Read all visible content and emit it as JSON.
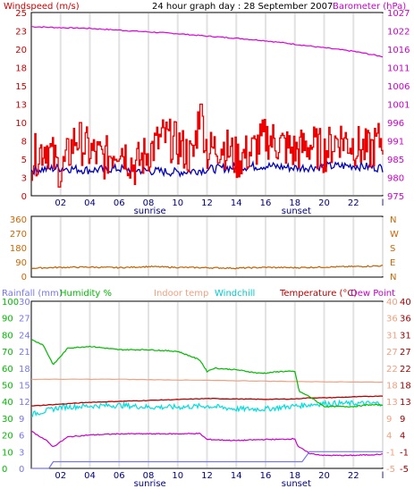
{
  "colors": {
    "windspeed": "#ee0000",
    "wind_avg": "#0000bb",
    "barometer": "#dd00dd",
    "winddir": "#c06000",
    "rainfall": "#7777ee",
    "humidity": "#00bb00",
    "indoor_temp": "#f0a080",
    "windchill": "#00dddd",
    "temperature": "#bb0000",
    "dewpoint": "#cc00cc",
    "axis_label_red": "#cc0000",
    "axis_label_purple": "#cc00cc",
    "axis_label_orange": "#cc6600"
  },
  "chart_data": [
    {
      "type": "line",
      "title": "24 hour graph day : 28 September 2007",
      "left_label": "Windspeed (m/s)",
      "right_label": "Barometer (hPa)",
      "x_ticks": [
        "02",
        "04",
        "06",
        "08",
        "10",
        "12",
        "14",
        "16",
        "18",
        "20",
        "22",
        "l"
      ],
      "x_markers": [
        "sunrise",
        "sunset"
      ],
      "y_left_ticks": [
        "0",
        "3",
        "5",
        "8",
        "10",
        "13",
        "15",
        "18",
        "20",
        "23",
        "25"
      ],
      "y_right_ticks": [
        "975",
        "980",
        "985",
        "991",
        "996",
        "1001",
        "1006",
        "1011",
        "1016",
        "1022",
        "1027"
      ],
      "ylim_left": [
        0,
        25
      ],
      "ylim_right": [
        975,
        1027
      ],
      "grid": true,
      "series": [
        {
          "name": "Windspeed (m/s)",
          "axis": "left",
          "x": [
            0,
            1,
            2,
            3,
            4,
            5,
            6,
            7,
            8,
            9,
            10,
            11,
            11.5,
            12,
            13,
            14,
            15,
            16,
            17,
            18,
            19,
            20,
            21,
            22,
            23,
            24
          ],
          "values": [
            5,
            7,
            3,
            8,
            6,
            5,
            7,
            4,
            6,
            8,
            7,
            5,
            12,
            6,
            7,
            5,
            6,
            8,
            7,
            6,
            7,
            6,
            8,
            7,
            6,
            8
          ]
        },
        {
          "name": "Wind average",
          "axis": "left",
          "x": [
            0,
            2,
            4,
            6,
            8,
            10,
            12,
            14,
            16,
            18,
            20,
            22,
            24
          ],
          "values": [
            3.5,
            3.8,
            3.5,
            3.7,
            3.4,
            3.2,
            3.6,
            3.9,
            4.1,
            3.8,
            4.0,
            4.1,
            3.8
          ]
        },
        {
          "name": "Barometer (hPa)",
          "axis": "right",
          "x": [
            0,
            2,
            4,
            6,
            8,
            10,
            12,
            14,
            16,
            18,
            20,
            22,
            24
          ],
          "values": [
            1023,
            1022.7,
            1022.5,
            1022,
            1021.5,
            1021,
            1020.3,
            1019.7,
            1019,
            1018,
            1017,
            1016,
            1014.5
          ]
        }
      ]
    },
    {
      "type": "line",
      "y_left_ticks": [
        "360",
        "270",
        "180",
        "90",
        "0"
      ],
      "y_right_ticks": [
        "N",
        "W",
        "S",
        "E",
        "N"
      ],
      "ylim": [
        0,
        360
      ],
      "grid": true,
      "series": [
        {
          "name": "Wind direction",
          "x": [
            0,
            2,
            4,
            6,
            8,
            10,
            12,
            14,
            16,
            18,
            20,
            22,
            24
          ],
          "values": [
            45,
            50,
            52,
            48,
            55,
            50,
            48,
            45,
            50,
            48,
            52,
            55,
            60
          ]
        }
      ]
    },
    {
      "type": "line",
      "x_ticks": [
        "02",
        "04",
        "06",
        "08",
        "10",
        "12",
        "14",
        "16",
        "18",
        "20",
        "22",
        "l"
      ],
      "x_markers": [
        "sunrise",
        "sunset"
      ],
      "legend": [
        "Rainfall (mm)",
        "Humidity %",
        "Indoor temp",
        "Windchill",
        "Temperature (°C)",
        "Dew Point"
      ],
      "y_rain_ticks": [
        "30",
        "27",
        "24",
        "21",
        "18",
        "15",
        "12",
        "9",
        "6",
        "3",
        "0"
      ],
      "y_hum_ticks": [
        "100",
        "90",
        "80",
        "70",
        "60",
        "50",
        "40",
        "30",
        "20",
        "10",
        "0"
      ],
      "y_temp_ticks": [
        "40",
        "36",
        "31",
        "27",
        "22",
        "18",
        "13",
        "9",
        "4",
        "-1",
        "-5"
      ],
      "y_dew_ticks": [
        "40",
        "36",
        "31",
        "27",
        "22",
        "18",
        "13",
        "9",
        "4",
        "-1",
        "-5"
      ],
      "ylim_humidity": [
        0,
        100
      ],
      "ylim_temp": [
        -5,
        40
      ],
      "ylim_rain": [
        0,
        30
      ],
      "grid": true,
      "series": [
        {
          "name": "Humidity %",
          "x": [
            0,
            0.8,
            1.5,
            2.5,
            4,
            6,
            8,
            10,
            11.5,
            12,
            12.5,
            14,
            15.5,
            16,
            17,
            18,
            18.3,
            19,
            20,
            21,
            22,
            23,
            24
          ],
          "values": [
            77,
            74,
            62,
            72,
            73,
            71,
            71,
            70,
            65,
            58,
            60,
            59,
            57,
            57,
            58,
            58,
            46,
            43,
            37,
            37,
            37,
            38,
            38
          ]
        },
        {
          "name": "Indoor temp",
          "x": [
            0,
            6,
            12,
            18,
            24
          ],
          "values": [
            19,
            19,
            18.7,
            18.4,
            18.2
          ]
        },
        {
          "name": "Windchill",
          "x": [
            0,
            2,
            4,
            6,
            8,
            10,
            12,
            14,
            16,
            18,
            20,
            22,
            24
          ],
          "values": [
            9.5,
            11.5,
            11.8,
            12,
            11.5,
            11.5,
            11.8,
            11,
            11,
            11.8,
            12.5,
            12.5,
            12.5
          ]
        },
        {
          "name": "Temperature (°C)",
          "x": [
            0,
            4,
            8,
            12,
            16,
            18,
            19,
            20,
            24
          ],
          "values": [
            11.8,
            12.8,
            13.3,
            13.8,
            13.6,
            13.7,
            14,
            14,
            14.5
          ]
        },
        {
          "name": "Dew Point",
          "x": [
            0,
            1,
            1.5,
            2.5,
            4,
            6,
            8,
            10,
            11.5,
            12,
            14,
            16,
            17,
            18,
            18.2,
            19,
            20,
            22,
            24
          ],
          "values": [
            5,
            2.6,
            0.8,
            3.5,
            4,
            4.3,
            4.3,
            4.3,
            4.4,
            2.8,
            2.5,
            2.8,
            2.8,
            3,
            1,
            -1,
            -1.5,
            -1.5,
            -1.2
          ]
        },
        {
          "name": "Rainfall (mm)",
          "x": [
            0,
            1.2,
            1.5,
            18.5,
            19,
            24
          ],
          "values": [
            0,
            0,
            1.2,
            1.2,
            3,
            3
          ]
        }
      ]
    }
  ]
}
